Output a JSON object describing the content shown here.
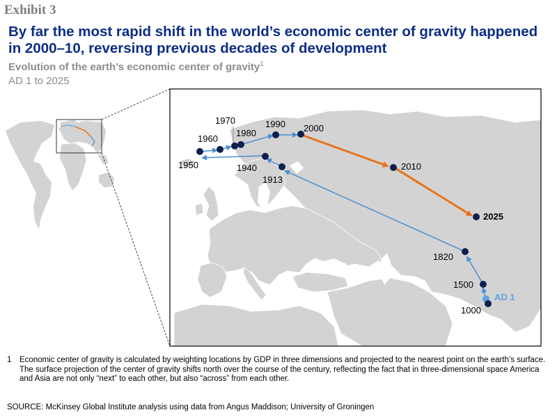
{
  "exhibit": "Exhibit 3",
  "headline": "By far the most rapid shift in the world’s economic center of gravity happened in 2000–10, reversing previous decades of development",
  "subtitle": "Evolution of the earth’s economic center of gravity",
  "subtitle_note": "1",
  "subtitle2": "AD 1 to 2025",
  "colors": {
    "land": "#d3d3d3",
    "sea": "#ffffff",
    "title": "#0b2d86",
    "historic_path": "#4a8fd1",
    "rapid_path": "#e8731a",
    "point": "#0d1f4d",
    "ad1_point": "#5fa4e4"
  },
  "points": [
    {
      "year": "AD 1",
      "label": "AD 1"
    },
    {
      "year": "1000",
      "label": "1000"
    },
    {
      "year": "1500",
      "label": "1500"
    },
    {
      "year": "1820",
      "label": "1820"
    },
    {
      "year": "1913",
      "label": "1913"
    },
    {
      "year": "1940",
      "label": "1940"
    },
    {
      "year": "1950",
      "label": "1950"
    },
    {
      "year": "1960",
      "label": "1960"
    },
    {
      "year": "1970",
      "label": "1970"
    },
    {
      "year": "1980",
      "label": "1980"
    },
    {
      "year": "1990",
      "label": "1990"
    },
    {
      "year": "2000",
      "label": "2000"
    },
    {
      "year": "2010",
      "label": "2010"
    },
    {
      "year": "2025",
      "label": "2025"
    }
  ],
  "footnote": {
    "number": "1",
    "text": "Economic center of gravity is calculated by weighting locations by GDP in three dimensions and projected to the nearest point on the earth’s surface. The surface projection of the center of gravity shifts north over the course of the century, reflecting the fact that in three-dimensional space America and Asia are not only “next” to each other, but also “across” from each other."
  },
  "source": "SOURCE: McKinsey Global Institute analysis using data from Angus Maddison; University of Groningen"
}
